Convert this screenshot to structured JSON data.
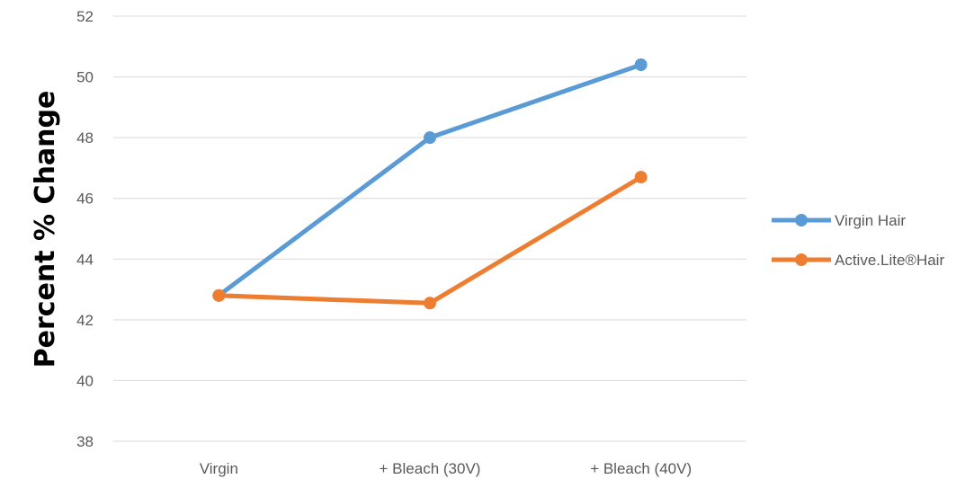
{
  "chart_data": {
    "type": "line",
    "title": "",
    "xlabel": "",
    "ylabel": "Percent % Change",
    "categories": [
      "Virgin",
      "+ Bleach (30V)",
      "+ Bleach (40V)"
    ],
    "ylim": [
      38,
      52
    ],
    "yticks": [
      38,
      40,
      42,
      44,
      46,
      48,
      50,
      52
    ],
    "grid": true,
    "legend_position": "right",
    "series": [
      {
        "name": "Virgin Hair",
        "values": [
          42.8,
          48.0,
          50.4
        ],
        "color": "#5b9bd5"
      },
      {
        "name": "Active.Lite®Hair",
        "values": [
          42.8,
          42.55,
          46.7
        ],
        "color": "#ed7d31"
      }
    ]
  }
}
